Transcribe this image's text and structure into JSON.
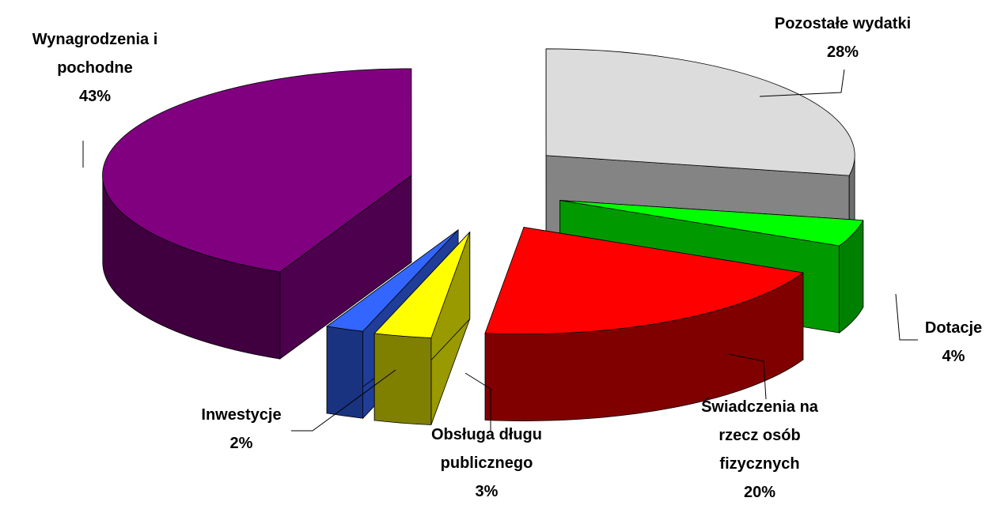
{
  "chart_data": {
    "type": "pie",
    "categories": [
      "Pozostałe wydatki",
      "Dotacje",
      "Świadczenia na rzecz osób fizycznych",
      "Obsługa długu publicznego",
      "Inwestycje",
      "Wynagrodzenia i pochodne"
    ],
    "values": [
      28,
      4,
      20,
      3,
      2,
      43
    ],
    "value_labels": [
      "28%",
      "4%",
      "20%",
      "3%",
      "2%",
      "43%"
    ],
    "colors": [
      "#dcdcdc",
      "#00ff00",
      "#ff0000",
      "#ffff00",
      "#3366ff",
      "#800080"
    ]
  }
}
